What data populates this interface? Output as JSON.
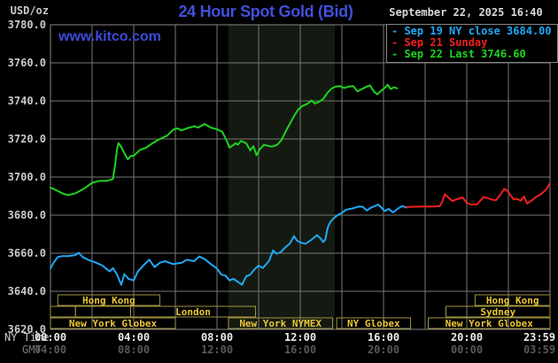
{
  "header": {
    "units_label": "USD/oz",
    "title": "24 Hour Spot Gold (Bid)",
    "datetime": "September 22, 2025 16:40",
    "watermark": "www.kitco.com"
  },
  "legend": [
    {
      "marker": "-",
      "label": "Sep 19 NY close 3684.00",
      "color": "#1fa9f7"
    },
    {
      "marker": "-",
      "label": "Sep 21 Sunday",
      "color": "#f2201f"
    },
    {
      "marker": "-",
      "label": "Sep 22 Last 3746.60",
      "color": "#1dd41d"
    }
  ],
  "colors": {
    "background": "#000000",
    "plot_border": "#888888",
    "gridline": "#777777",
    "title_blue": "#4150dd",
    "session_border": "#a2933f",
    "session_text": "#eac736",
    "nymex_band": "#141a11"
  },
  "chart_data": {
    "type": "line",
    "title": "24 Hour Spot Gold (Bid)",
    "y_axis": {
      "unit": "USD/oz",
      "ylim": [
        3620,
        3780
      ],
      "tick_step": 20,
      "ticks": [
        "3780.0",
        "3760.0",
        "3740.0",
        "3720.0",
        "3700.0",
        "3680.0",
        "3660.0",
        "3640.0",
        "3620.0"
      ]
    },
    "x_axis": {
      "xlim_hours": [
        0,
        24
      ],
      "gridline_every_hours": 2,
      "row1_label": "NY Time",
      "row2_label": "GMT",
      "ticks_ny": [
        {
          "hour": 0,
          "label": "00:00"
        },
        {
          "hour": 4,
          "label": "04:00"
        },
        {
          "hour": 8,
          "label": "08:00"
        },
        {
          "hour": 12,
          "label": "12:00"
        },
        {
          "hour": 16,
          "label": "16:00"
        },
        {
          "hour": 20,
          "label": "20:00"
        },
        {
          "hour": 23.98,
          "label": "23:59"
        }
      ],
      "ticks_gmt": [
        {
          "hour": 0,
          "label": "04:00"
        },
        {
          "hour": 4,
          "label": "08:00"
        },
        {
          "hour": 8,
          "label": "12:00"
        },
        {
          "hour": 12,
          "label": "16:00"
        },
        {
          "hour": 16,
          "label": "20:00"
        },
        {
          "hour": 20,
          "label": "00:00"
        },
        {
          "hour": 23.98,
          "label": "03:59"
        }
      ]
    },
    "highlight_band": {
      "start_hour": 8.55,
      "end_hour": 13.66,
      "meaning": "New York NYMEX session",
      "color": "#141a11"
    },
    "series": [
      {
        "name": "Sep 19 NY close",
        "close_value": 3684.0,
        "color": "#1fa9f7",
        "points": [
          [
            0,
            3652
          ],
          [
            0.15,
            3655
          ],
          [
            0.35,
            3658
          ],
          [
            0.6,
            3658.5
          ],
          [
            0.85,
            3658.5
          ],
          [
            1.2,
            3659
          ],
          [
            1.35,
            3660.3
          ],
          [
            1.55,
            3658
          ],
          [
            1.8,
            3656.6
          ],
          [
            2.2,
            3655
          ],
          [
            2.5,
            3653.5
          ],
          [
            2.7,
            3651.6
          ],
          [
            2.85,
            3650.4
          ],
          [
            3.0,
            3652.2
          ],
          [
            3.2,
            3648.8
          ],
          [
            3.4,
            3643.4
          ],
          [
            3.55,
            3649
          ],
          [
            3.75,
            3646.5
          ],
          [
            4.0,
            3645.7
          ],
          [
            4.2,
            3650.4
          ],
          [
            4.5,
            3654
          ],
          [
            4.75,
            3656.6
          ],
          [
            5.0,
            3652.7
          ],
          [
            5.25,
            3655
          ],
          [
            5.5,
            3655.8
          ],
          [
            5.9,
            3654.3
          ],
          [
            6.3,
            3655
          ],
          [
            6.55,
            3656.6
          ],
          [
            6.9,
            3655.8
          ],
          [
            7.15,
            3658.3
          ],
          [
            7.45,
            3656.6
          ],
          [
            7.7,
            3654.3
          ],
          [
            8.0,
            3652
          ],
          [
            8.2,
            3648.8
          ],
          [
            8.4,
            3648.3
          ],
          [
            8.6,
            3645.7
          ],
          [
            8.8,
            3646.5
          ],
          [
            9.0,
            3645
          ],
          [
            9.2,
            3643.5
          ],
          [
            9.4,
            3647.8
          ],
          [
            9.6,
            3648.8
          ],
          [
            9.8,
            3651.5
          ],
          [
            10.0,
            3653.5
          ],
          [
            10.2,
            3652.2
          ],
          [
            10.5,
            3656
          ],
          [
            10.7,
            3661.5
          ],
          [
            10.85,
            3659.7
          ],
          [
            11.05,
            3660.5
          ],
          [
            11.25,
            3662.8
          ],
          [
            11.5,
            3665.1
          ],
          [
            11.7,
            3669
          ],
          [
            11.85,
            3666.5
          ],
          [
            12.05,
            3665.5
          ],
          [
            12.25,
            3665
          ],
          [
            12.5,
            3666.8
          ],
          [
            12.8,
            3669.5
          ],
          [
            13.0,
            3667.5
          ],
          [
            13.1,
            3665.9
          ],
          [
            13.2,
            3667
          ],
          [
            13.32,
            3673.5
          ],
          [
            13.45,
            3676.5
          ],
          [
            13.6,
            3678.3
          ],
          [
            13.8,
            3680.1
          ],
          [
            14.0,
            3681.1
          ],
          [
            14.2,
            3682.9
          ],
          [
            14.5,
            3683.5
          ],
          [
            14.8,
            3684.5
          ],
          [
            15.0,
            3684.4
          ],
          [
            15.2,
            3682.4
          ],
          [
            15.4,
            3684
          ],
          [
            15.6,
            3684.8
          ],
          [
            15.75,
            3685.6
          ],
          [
            15.9,
            3684
          ],
          [
            16.05,
            3682.2
          ],
          [
            16.25,
            3683.3
          ],
          [
            16.45,
            3681.4
          ],
          [
            16.7,
            3683.5
          ],
          [
            16.9,
            3684.8
          ],
          [
            17.1,
            3684.0
          ]
        ]
      },
      {
        "name": "Sep 21 Sunday",
        "color": "#f2201f",
        "points": [
          [
            17.1,
            3684.3
          ],
          [
            17.5,
            3684.4
          ],
          [
            18.0,
            3684.5
          ],
          [
            18.4,
            3684.5
          ],
          [
            18.7,
            3684.8
          ],
          [
            18.82,
            3687
          ],
          [
            18.95,
            3691
          ],
          [
            19.1,
            3689.4
          ],
          [
            19.3,
            3687.4
          ],
          [
            19.5,
            3688.3
          ],
          [
            19.8,
            3689.3
          ],
          [
            20.0,
            3686.5
          ],
          [
            20.2,
            3685.6
          ],
          [
            20.5,
            3685.7
          ],
          [
            20.8,
            3689.5
          ],
          [
            21.0,
            3689
          ],
          [
            21.2,
            3688.2
          ],
          [
            21.4,
            3687.8
          ],
          [
            21.6,
            3690.5
          ],
          [
            21.8,
            3693.8
          ],
          [
            21.95,
            3692.8
          ],
          [
            22.1,
            3690.5
          ],
          [
            22.25,
            3688.3
          ],
          [
            22.4,
            3688.6
          ],
          [
            22.6,
            3687.6
          ],
          [
            22.75,
            3689.8
          ],
          [
            22.9,
            3686.2
          ],
          [
            23.1,
            3687.5
          ],
          [
            23.3,
            3689.3
          ],
          [
            23.5,
            3690.6
          ],
          [
            23.7,
            3692.3
          ],
          [
            23.85,
            3694
          ],
          [
            23.98,
            3696.5
          ]
        ]
      },
      {
        "name": "Sep 22 Last",
        "last_value": 3746.6,
        "color": "#1dd41d",
        "points": [
          [
            0,
            3694.5
          ],
          [
            0.3,
            3693
          ],
          [
            0.6,
            3691.3
          ],
          [
            0.85,
            3690.5
          ],
          [
            1.2,
            3691.5
          ],
          [
            1.6,
            3693.8
          ],
          [
            2.0,
            3697
          ],
          [
            2.35,
            3698
          ],
          [
            2.7,
            3698
          ],
          [
            3.0,
            3699
          ],
          [
            3.1,
            3706
          ],
          [
            3.2,
            3715
          ],
          [
            3.27,
            3717.8
          ],
          [
            3.4,
            3715.8
          ],
          [
            3.55,
            3712.5
          ],
          [
            3.72,
            3709.3
          ],
          [
            3.85,
            3711
          ],
          [
            4.0,
            3711.2
          ],
          [
            4.3,
            3714.3
          ],
          [
            4.6,
            3715.5
          ],
          [
            4.9,
            3717.8
          ],
          [
            5.2,
            3719.7
          ],
          [
            5.6,
            3721.7
          ],
          [
            5.9,
            3725
          ],
          [
            6.1,
            3725.6
          ],
          [
            6.3,
            3724.5
          ],
          [
            6.55,
            3725.6
          ],
          [
            6.9,
            3726.7
          ],
          [
            7.1,
            3726
          ],
          [
            7.4,
            3727.9
          ],
          [
            7.7,
            3726
          ],
          [
            8.0,
            3725.1
          ],
          [
            8.25,
            3723.8
          ],
          [
            8.45,
            3719.5
          ],
          [
            8.6,
            3715.5
          ],
          [
            8.75,
            3716.5
          ],
          [
            8.9,
            3717.8
          ],
          [
            9.0,
            3717
          ],
          [
            9.15,
            3719
          ],
          [
            9.4,
            3717.8
          ],
          [
            9.6,
            3714
          ],
          [
            9.75,
            3716.2
          ],
          [
            9.9,
            3711.5
          ],
          [
            10.05,
            3714.5
          ],
          [
            10.25,
            3717
          ],
          [
            10.45,
            3716.4
          ],
          [
            10.65,
            3716
          ],
          [
            10.9,
            3717
          ],
          [
            11.1,
            3719.5
          ],
          [
            11.3,
            3724
          ],
          [
            11.5,
            3728
          ],
          [
            11.7,
            3732
          ],
          [
            11.9,
            3735.5
          ],
          [
            12.1,
            3737.3
          ],
          [
            12.35,
            3738.5
          ],
          [
            12.55,
            3740.3
          ],
          [
            12.7,
            3738.6
          ],
          [
            12.9,
            3739.5
          ],
          [
            13.1,
            3741
          ],
          [
            13.3,
            3744.2
          ],
          [
            13.5,
            3746.5
          ],
          [
            13.7,
            3747.5
          ],
          [
            13.9,
            3747.8
          ],
          [
            14.1,
            3746.8
          ],
          [
            14.3,
            3747.5
          ],
          [
            14.55,
            3747.8
          ],
          [
            14.75,
            3745
          ],
          [
            14.95,
            3746.2
          ],
          [
            15.15,
            3747.3
          ],
          [
            15.35,
            3748.2
          ],
          [
            15.55,
            3744.8
          ],
          [
            15.7,
            3743.5
          ],
          [
            15.9,
            3745.5
          ],
          [
            16.05,
            3746.8
          ],
          [
            16.2,
            3748.5
          ],
          [
            16.35,
            3746.2
          ],
          [
            16.5,
            3747.2
          ],
          [
            16.65,
            3746.6
          ]
        ]
      }
    ],
    "sessions": [
      {
        "row": 1,
        "label": "Hong Kong",
        "start_hour": 0.35,
        "end_hour": 5.25
      },
      {
        "row": 1,
        "label": "Hong Kong",
        "start_hour": 20.4,
        "end_hour": 24
      },
      {
        "row": 2,
        "label": "",
        "start_hour": 0,
        "end_hour": 1.2
      },
      {
        "row": 2,
        "label": "",
        "start_hour": 1.2,
        "end_hour": 3.85
      },
      {
        "row": 2,
        "label": "London",
        "start_hour": 3.85,
        "end_hour": 9.85
      },
      {
        "row": 2,
        "label": "Sydney",
        "start_hour": 19.0,
        "end_hour": 24
      },
      {
        "row": 3,
        "label": "New York Globex",
        "start_hour": 0,
        "end_hour": 6.0
      },
      {
        "row": 3,
        "label": "New York NYMEX",
        "start_hour": 8.55,
        "end_hour": 13.55
      },
      {
        "row": 3,
        "label": "NY Globex",
        "start_hour": 13.75,
        "end_hour": 17.3
      },
      {
        "row": 3,
        "label": "New York Globex",
        "start_hour": 18.15,
        "end_hour": 24
      }
    ]
  }
}
